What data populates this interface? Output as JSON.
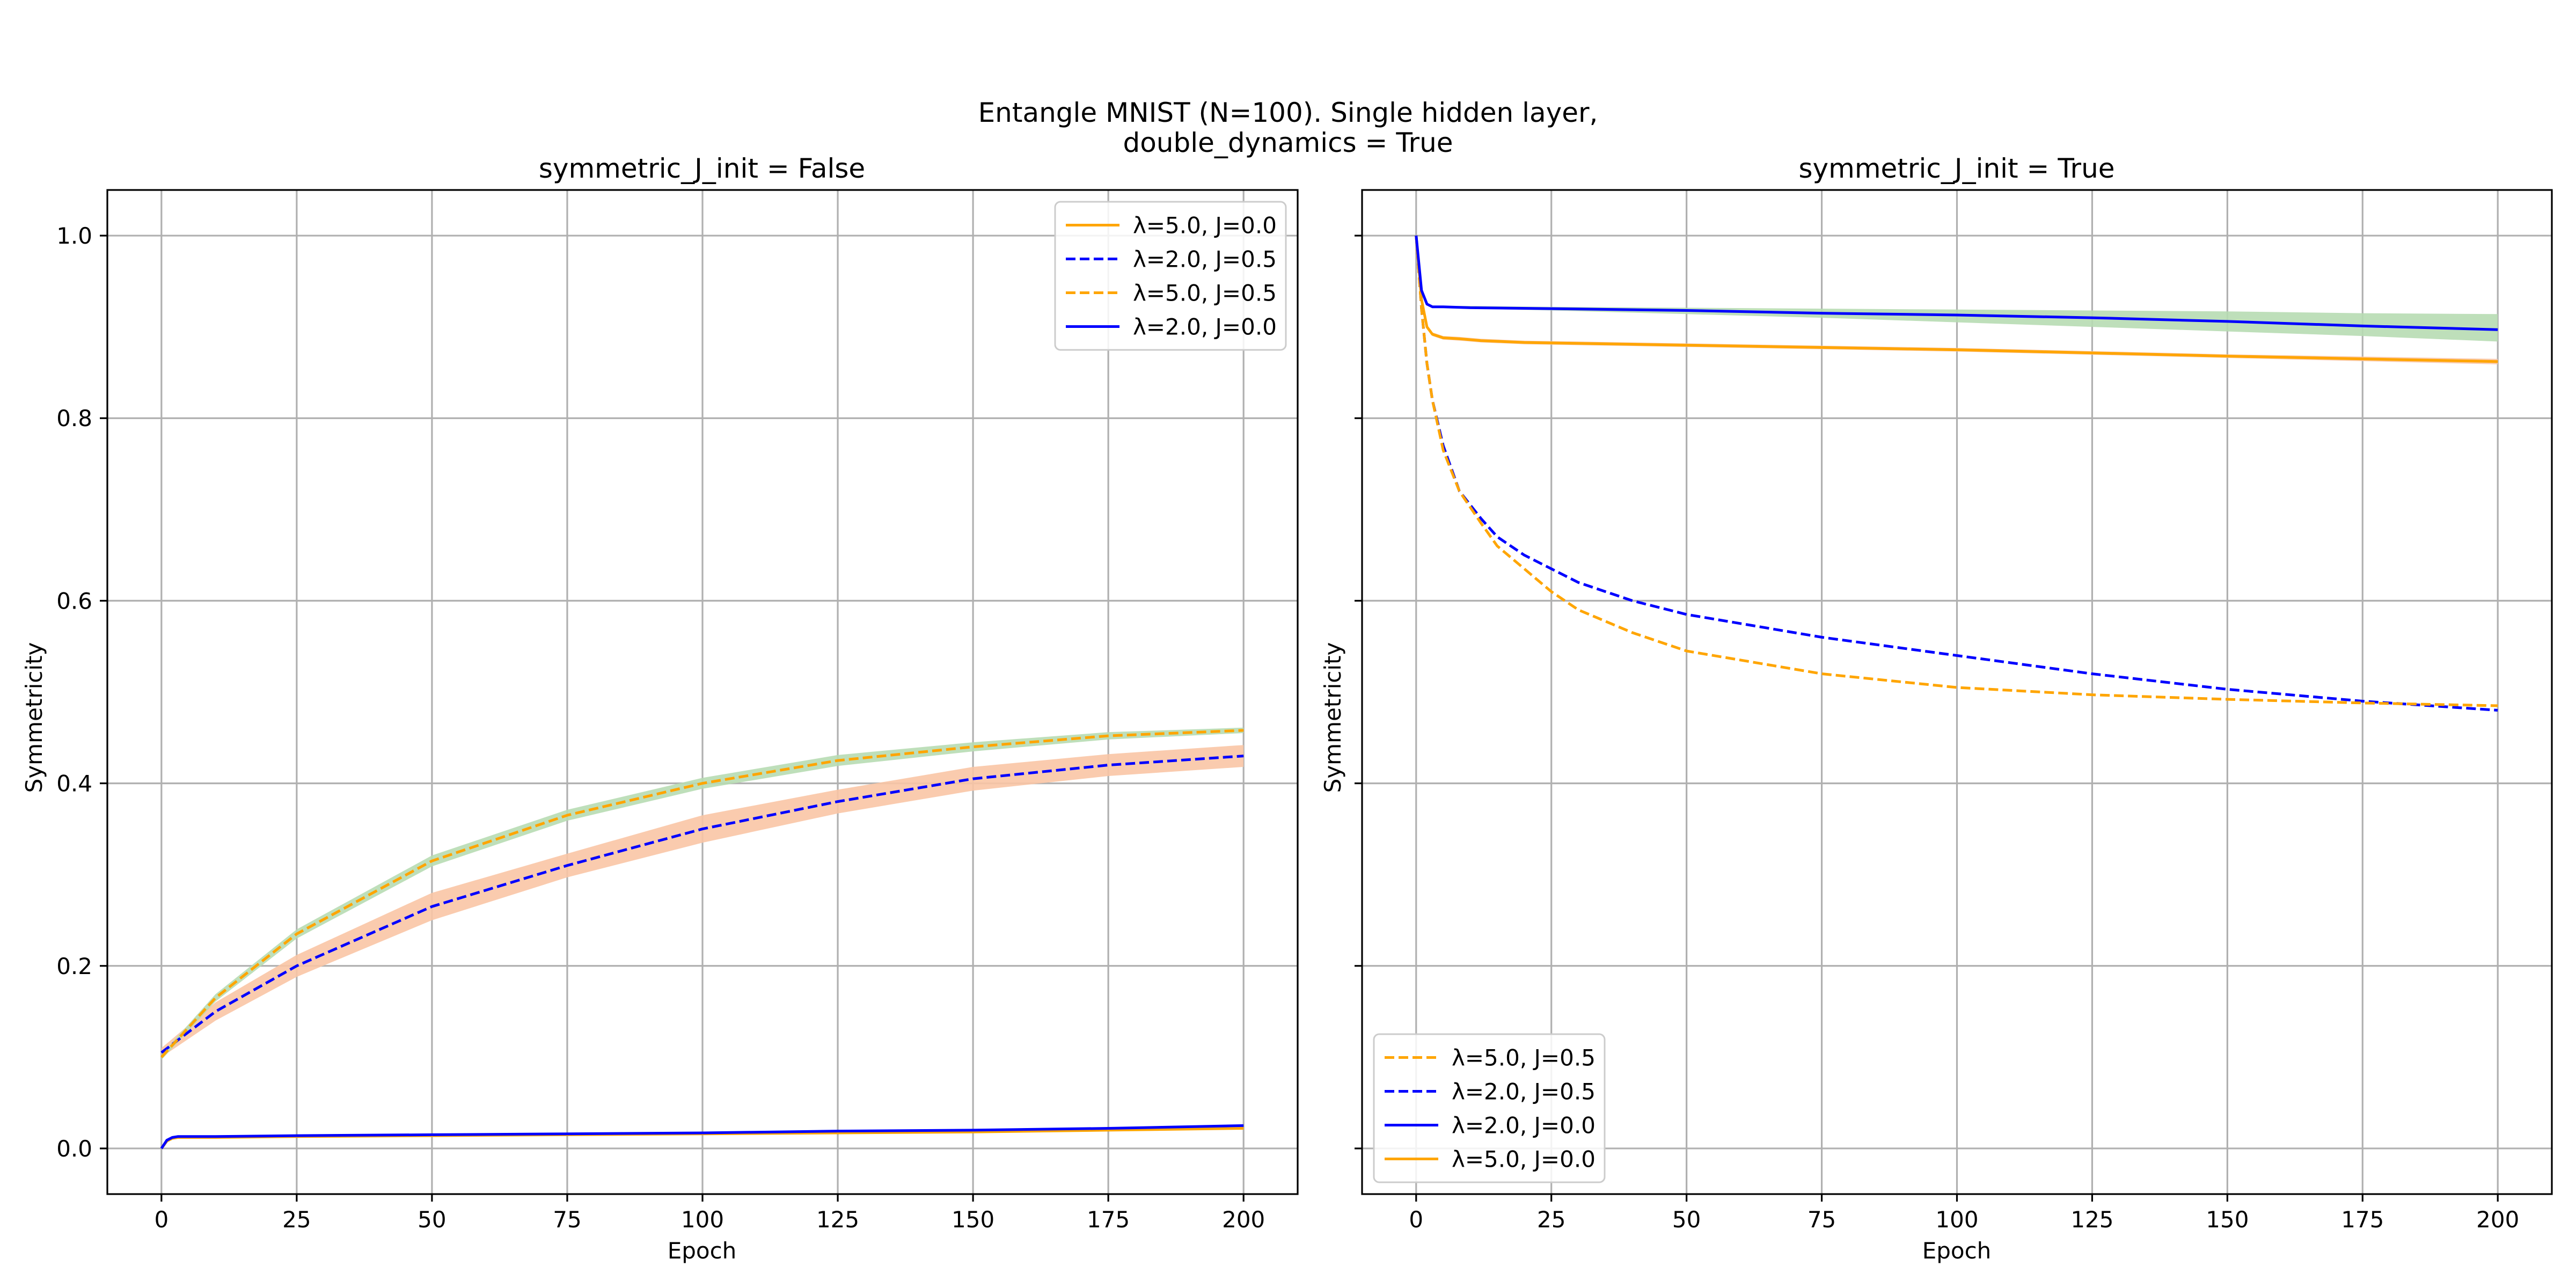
{
  "figure": {
    "suptitle_line1": "Entangle MNIST (N=100). Single hidden layer,",
    "suptitle_line2": "double_dynamics = True"
  },
  "chart_data": [
    {
      "type": "line",
      "title": "symmetric_J_init = False",
      "xlabel": "Epoch",
      "ylabel": "Symmetricity",
      "xlim": [
        -10,
        210
      ],
      "ylim": [
        -0.05,
        1.05
      ],
      "xticks": [
        0,
        25,
        50,
        75,
        100,
        125,
        150,
        175,
        200
      ],
      "yticks": [
        0.0,
        0.2,
        0.4,
        0.6,
        0.8,
        1.0
      ],
      "ytick_labels": [
        "0.0",
        "0.2",
        "0.4",
        "0.6",
        "0.8",
        "1.0"
      ],
      "grid": true,
      "legend_position": "upper right",
      "legend_order": [
        0,
        1,
        2,
        3
      ],
      "series": [
        {
          "name": "λ=5.0, J=0.0",
          "color": "#ffa500",
          "dash": "solid",
          "x": [
            0,
            1,
            2,
            3,
            5,
            10,
            25,
            50,
            75,
            100,
            125,
            150,
            175,
            200
          ],
          "y": [
            0.0,
            0.008,
            0.011,
            0.012,
            0.012,
            0.012,
            0.013,
            0.014,
            0.015,
            0.016,
            0.017,
            0.018,
            0.02,
            0.022
          ]
        },
        {
          "name": "λ=2.0, J=0.5",
          "color": "#0000ff",
          "dash": "dashed",
          "x": [
            0,
            10,
            25,
            50,
            75,
            100,
            125,
            150,
            175,
            200
          ],
          "y": [
            0.105,
            0.15,
            0.2,
            0.265,
            0.31,
            0.35,
            0.38,
            0.405,
            0.42,
            0.43
          ],
          "band": {
            "color": "#f9c5a5",
            "lower": [
              0.1,
              0.14,
              0.188,
              0.25,
              0.297,
              0.335,
              0.367,
              0.392,
              0.408,
              0.418
            ],
            "upper": [
              0.11,
              0.16,
              0.212,
              0.28,
              0.323,
              0.365,
              0.393,
              0.418,
              0.432,
              0.442
            ]
          }
        },
        {
          "name": "λ=5.0, J=0.5",
          "color": "#ffa500",
          "dash": "dashed",
          "x": [
            0,
            10,
            25,
            50,
            75,
            100,
            125,
            150,
            175,
            200
          ],
          "y": [
            0.1,
            0.165,
            0.235,
            0.315,
            0.365,
            0.4,
            0.425,
            0.44,
            0.452,
            0.458
          ],
          "band": {
            "color": "#b7dbb2",
            "lower": [
              0.097,
              0.161,
              0.23,
              0.309,
              0.359,
              0.394,
              0.419,
              0.435,
              0.448,
              0.455
            ],
            "upper": [
              0.103,
              0.169,
              0.24,
              0.321,
              0.371,
              0.406,
              0.431,
              0.445,
              0.456,
              0.461
            ]
          }
        },
        {
          "name": "λ=2.0, J=0.0",
          "color": "#0000ff",
          "dash": "solid",
          "x": [
            0,
            1,
            2,
            3,
            5,
            10,
            25,
            50,
            75,
            100,
            125,
            150,
            175,
            200
          ],
          "y": [
            0.0,
            0.009,
            0.012,
            0.013,
            0.013,
            0.013,
            0.014,
            0.015,
            0.016,
            0.017,
            0.019,
            0.02,
            0.022,
            0.025
          ]
        }
      ]
    },
    {
      "type": "line",
      "title": "symmetric_J_init = True",
      "xlabel": "Epoch",
      "ylabel": "Symmetricity",
      "xlim": [
        -10,
        210
      ],
      "ylim": [
        -0.05,
        1.05
      ],
      "xticks": [
        0,
        25,
        50,
        75,
        100,
        125,
        150,
        175,
        200
      ],
      "yticks": [
        0.0,
        0.2,
        0.4,
        0.6,
        0.8,
        1.0
      ],
      "ytick_labels": [],
      "grid": true,
      "legend_position": "lower left",
      "legend_order": [
        2,
        1,
        3,
        0
      ],
      "series": [
        {
          "name": "λ=5.0, J=0.0",
          "color": "#ffa500",
          "dash": "solid",
          "x": [
            0,
            1,
            2,
            3,
            5,
            8,
            12,
            20,
            50,
            100,
            150,
            200
          ],
          "y": [
            1.0,
            0.93,
            0.9,
            0.892,
            0.888,
            0.887,
            0.885,
            0.883,
            0.88,
            0.875,
            0.868,
            0.862
          ],
          "band": {
            "color": "#f9c5a5",
            "lower": [
              1.0,
              0.928,
              0.898,
              0.89,
              0.886,
              0.885,
              0.883,
              0.881,
              0.878,
              0.873,
              0.866,
              0.859
            ],
            "upper": [
              1.0,
              0.932,
              0.902,
              0.894,
              0.89,
              0.889,
              0.887,
              0.885,
              0.882,
              0.877,
              0.87,
              0.865
            ]
          }
        },
        {
          "name": "λ=2.0, J=0.5",
          "color": "#0000ff",
          "dash": "dashed",
          "x": [
            0,
            1,
            2,
            3,
            5,
            8,
            12,
            15,
            20,
            25,
            30,
            40,
            50,
            75,
            100,
            125,
            150,
            175,
            200
          ],
          "y": [
            1.0,
            0.92,
            0.86,
            0.82,
            0.77,
            0.72,
            0.69,
            0.67,
            0.65,
            0.635,
            0.62,
            0.6,
            0.585,
            0.56,
            0.54,
            0.52,
            0.503,
            0.49,
            0.48
          ]
        },
        {
          "name": "λ=5.0, J=0.5",
          "color": "#ffa500",
          "dash": "dashed",
          "x": [
            0,
            1,
            2,
            3,
            5,
            8,
            12,
            15,
            20,
            25,
            30,
            40,
            50,
            75,
            100,
            125,
            150,
            175,
            200
          ],
          "y": [
            1.0,
            0.92,
            0.86,
            0.82,
            0.765,
            0.72,
            0.685,
            0.66,
            0.635,
            0.61,
            0.59,
            0.565,
            0.545,
            0.52,
            0.505,
            0.497,
            0.492,
            0.488,
            0.485
          ]
        },
        {
          "name": "λ=2.0, J=0.0",
          "color": "#0000ff",
          "dash": "solid",
          "x": [
            0,
            1,
            2,
            3,
            5,
            10,
            25,
            50,
            75,
            100,
            125,
            150,
            175,
            200
          ],
          "y": [
            1.0,
            0.94,
            0.925,
            0.922,
            0.922,
            0.921,
            0.92,
            0.918,
            0.915,
            0.913,
            0.91,
            0.906,
            0.901,
            0.897
          ],
          "band": {
            "color": "#b7dbb2",
            "lower": [
              1.0,
              0.939,
              0.924,
              0.921,
              0.921,
              0.92,
              0.918,
              0.914,
              0.91,
              0.905,
              0.9,
              0.895,
              0.89,
              0.884
            ],
            "upper": [
              1.0,
              0.941,
              0.926,
              0.923,
              0.923,
              0.923,
              0.922,
              0.921,
              0.92,
              0.919,
              0.918,
              0.917,
              0.915,
              0.914
            ]
          }
        }
      ]
    }
  ]
}
